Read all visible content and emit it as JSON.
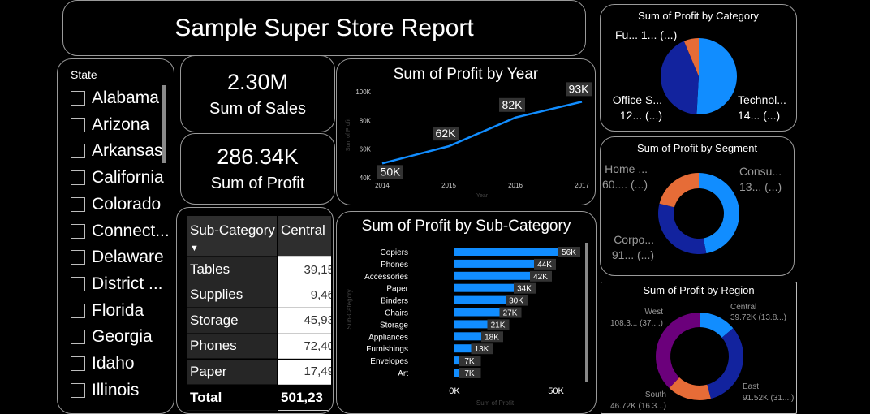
{
  "report_title": "Sample Super Store Report",
  "slicer": {
    "header": "State",
    "items": [
      "Alabama",
      "Arizona",
      "Arkansas",
      "California",
      "Colorado",
      "Connect...",
      "Delaware",
      "District ...",
      "Florida",
      "Georgia",
      "Idaho",
      "Illinois"
    ]
  },
  "cards": {
    "sales": {
      "value": "2.30M",
      "label": "Sum of Sales"
    },
    "profit": {
      "value": "286.34K",
      "label": "Sum of Profit"
    }
  },
  "table": {
    "headers": [
      "Sub-Category",
      "Central"
    ],
    "rows": [
      {
        "name": "Tables",
        "value": "39,15"
      },
      {
        "name": "Supplies",
        "value": "9,46"
      },
      {
        "name": "Storage",
        "value": "45,93"
      },
      {
        "name": "Phones",
        "value": "72,40"
      },
      {
        "name": "Paper",
        "value": "17,49"
      }
    ],
    "total_label": "Total",
    "total_value": "501,23"
  },
  "colors": {
    "blue": "#118DFF",
    "navy": "#12239E",
    "orange": "#E66C37",
    "purple": "#6B007B",
    "gray_text": "#9a9a9a"
  },
  "chart_data": [
    {
      "type": "line",
      "title": "Sum of Profit by Year",
      "xlabel": "Year",
      "ylabel": "Sum of Profit",
      "x": [
        2014,
        2015,
        2016,
        2017
      ],
      "values": [
        50,
        62,
        82,
        93
      ],
      "data_labels": [
        "50K",
        "62K",
        "82K",
        "93K"
      ],
      "yticks": [
        "40K",
        "60K",
        "80K",
        "100K"
      ],
      "ylim": [
        40,
        100
      ]
    },
    {
      "type": "bar",
      "title": "Sum of Profit by Sub-Category",
      "xlabel": "Sum of Profit",
      "ylabel": "Sub-Category",
      "categories": [
        "Copiers",
        "Phones",
        "Accessories",
        "Paper",
        "Binders",
        "Chairs",
        "Storage",
        "Appliances",
        "Furnishings",
        "Envelopes",
        "Art"
      ],
      "values": [
        56,
        44,
        42,
        34,
        30,
        27,
        21,
        18,
        13,
        7,
        7
      ],
      "data_labels": [
        "56K",
        "44K",
        "42K",
        "34K",
        "30K",
        "27K",
        "21K",
        "18K",
        "13K",
        "7K",
        "7K"
      ],
      "xticks": [
        "0K",
        "50K"
      ],
      "xlim": [
        0,
        56
      ]
    },
    {
      "type": "pie",
      "title": "Sum of Profit by Category",
      "categories": [
        "Technology",
        "Office Supplies",
        "Furniture"
      ],
      "values": [
        145,
        122,
        18
      ],
      "labels": [
        [
          "Technol...",
          "14... (...)"
        ],
        [
          "Office S...",
          "12... (...)"
        ],
        [
          "Fu... 1... (...)"
        ]
      ]
    },
    {
      "type": "pie",
      "title": "Sum of Profit by Segment",
      "categories": [
        "Consumer",
        "Corporate",
        "Home Office"
      ],
      "values": [
        134,
        91,
        60
      ],
      "labels": [
        [
          "Consu...",
          "13... (...)"
        ],
        [
          "Corpo...",
          "91... (...)"
        ],
        [
          "Home ...",
          "60.... (...)"
        ]
      ]
    },
    {
      "type": "pie",
      "title": "Sum of Profit by Region",
      "categories": [
        "Central",
        "East",
        "South",
        "West"
      ],
      "values": [
        39.72,
        91.52,
        46.72,
        108.3
      ],
      "labels": [
        [
          "Central",
          "39.72K (13.8...)"
        ],
        [
          "East",
          "91.52K (31....)"
        ],
        [
          "South",
          "46.72K (16.3...)"
        ],
        [
          "West",
          "108.3... (37....)"
        ]
      ]
    }
  ]
}
